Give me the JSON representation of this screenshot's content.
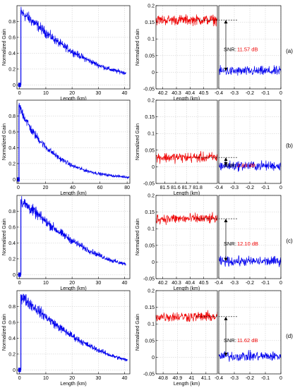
{
  "chart_data": [
    {
      "type": "line",
      "row_label": "(a)",
      "overview": {
        "xlabel": "Length (km)",
        "ylabel": "Normalized Gain",
        "xlim": [
          -1,
          42
        ],
        "ylim": [
          -0.05,
          1.0
        ],
        "xticks": [
          "0",
          "10",
          "20",
          "30",
          "40"
        ],
        "yticks": [
          "0",
          "0.2",
          "0.4",
          "0.6",
          "0.8"
        ],
        "series": [
          {
            "name": "",
            "color": "#0000ee",
            "x": [
              0,
              0.5,
              5,
              10,
              15,
              20,
              25,
              30,
              35,
              40.5
            ],
            "y": [
              0.0,
              0.92,
              0.8,
              0.66,
              0.53,
              0.42,
              0.33,
              0.25,
              0.19,
              0.15
            ]
          }
        ]
      },
      "zoom_fiber": {
        "xlabel": "Length (km)",
        "ylabel": "Normalized Gain",
        "xlim": [
          40.15,
          40.6
        ],
        "ylim": [
          -0.05,
          0.2
        ],
        "xticks": [
          "40.2",
          "40.3",
          "40.4",
          "40.5"
        ],
        "yticks": [
          "-0.05",
          "0",
          "0.05",
          "0.1",
          "0.15",
          "0.2"
        ],
        "series": [
          {
            "name": "",
            "color": "#ee0000",
            "x": [
              40.15,
              40.6
            ],
            "y": [
              0.157,
              0.157
            ]
          }
        ]
      },
      "zoom_noise": {
        "xlim": [
          -0.4,
          0.0
        ],
        "xticks": [
          "-0.4",
          "-0.3",
          "-0.2",
          "-0.1",
          "0"
        ],
        "series": [
          {
            "name": "",
            "color": "#0000ee",
            "x": [
              -0.4,
              0.0
            ],
            "y": [
              0.003,
              0.003
            ]
          }
        ]
      },
      "snr_label": "SNR:",
      "snr_value": "11.57 dB"
    },
    {
      "type": "line",
      "row_label": "(b)",
      "overview": {
        "xlabel": "Length (km)",
        "ylabel": "Normalized Gain",
        "xlim": [
          -1,
          82
        ],
        "ylim": [
          -0.05,
          1.0
        ],
        "xticks": [
          "0",
          "20",
          "40",
          "60",
          "80"
        ],
        "yticks": [
          "0",
          "0.2",
          "0.4",
          "0.6",
          "0.8"
        ],
        "series": [
          {
            "name": "",
            "color": "#0000ee",
            "x": [
              0,
              0.5,
              10,
              20,
              30,
              40,
              50,
              60,
              70,
              81.5
            ],
            "y": [
              0.0,
              0.92,
              0.61,
              0.41,
              0.27,
              0.17,
              0.11,
              0.07,
              0.045,
              0.028
            ]
          }
        ]
      },
      "zoom_fiber": {
        "xlabel": "Length (km)",
        "ylabel": "Normalized Gain",
        "xlim": [
          81.42,
          81.98
        ],
        "ylim": [
          -0.05,
          0.2
        ],
        "xticks": [
          "81.5",
          "81.6",
          "81.7",
          "81.8"
        ],
        "yticks": [
          "-0.05",
          "0",
          "0.05",
          "0.1",
          "0.15",
          "0.2"
        ],
        "series": [
          {
            "name": "",
            "color": "#ee0000",
            "x": [
              81.42,
              81.98
            ],
            "y": [
              0.028,
              0.028
            ]
          }
        ]
      },
      "zoom_noise": {
        "xlim": [
          -0.4,
          0.0
        ],
        "xticks": [
          "-0.4",
          "-0.3",
          "-0.2",
          "-0.1",
          "0"
        ],
        "series": [
          {
            "name": "",
            "color": "#0000ee",
            "x": [
              -0.4,
              0.0
            ],
            "y": [
              0.003,
              0.003
            ]
          }
        ]
      },
      "snr_label": "SNR:",
      "snr_value": "2.83 dB"
    },
    {
      "type": "line",
      "row_label": "(c)",
      "overview": {
        "xlabel": "Length (km)",
        "ylabel": "Normalized Gain",
        "xlim": [
          -1,
          42
        ],
        "ylim": [
          -0.05,
          1.0
        ],
        "xticks": [
          "0",
          "10",
          "20",
          "30",
          "40"
        ],
        "yticks": [
          "0",
          "0.2",
          "0.4",
          "0.6",
          "0.8"
        ],
        "series": [
          {
            "name": "",
            "color": "#0000ee",
            "x": [
              0,
              0.5,
              5,
              10,
              15,
              20,
              25,
              30,
              35,
              40.5
            ],
            "y": [
              0.0,
              0.93,
              0.81,
              0.67,
              0.54,
              0.43,
              0.33,
              0.25,
              0.18,
              0.13
            ]
          }
        ]
      },
      "zoom_fiber": {
        "xlabel": "Length (km)",
        "ylabel": "Normalized Gain",
        "xlim": [
          40.15,
          40.6
        ],
        "ylim": [
          -0.05,
          0.2
        ],
        "xticks": [
          "40.2",
          "40.3",
          "40.4",
          "40.5"
        ],
        "yticks": [
          "-0.05",
          "0",
          "0.05",
          "0.1",
          "0.15",
          "0.2"
        ],
        "series": [
          {
            "name": "",
            "color": "#ee0000",
            "x": [
              40.15,
              40.6
            ],
            "y": [
              0.13,
              0.13
            ]
          }
        ]
      },
      "zoom_noise": {
        "xlim": [
          -0.4,
          0.0
        ],
        "xticks": [
          "-0.4",
          "-0.3",
          "-0.2",
          "-0.1",
          "0"
        ],
        "series": [
          {
            "name": "",
            "color": "#0000ee",
            "x": [
              -0.4,
              0.0
            ],
            "y": [
              0.002,
              0.002
            ]
          }
        ]
      },
      "snr_label": "SNR:",
      "snr_value": "12.10 dB"
    },
    {
      "type": "line",
      "row_label": "(d)",
      "overview": {
        "xlabel": "Length (km)",
        "ylabel": "Normalized Gain",
        "xlim": [
          -1,
          42
        ],
        "ylim": [
          -0.05,
          1.0
        ],
        "xticks": [
          "0",
          "10",
          "20",
          "30",
          "40"
        ],
        "yticks": [
          "0",
          "0.2",
          "0.4",
          "0.6",
          "0.8"
        ],
        "series": [
          {
            "name": "",
            "color": "#0000ee",
            "x": [
              0,
              0.5,
              5,
              10,
              15,
              20,
              25,
              30,
              35,
              41
            ],
            "y": [
              0.0,
              0.93,
              0.81,
              0.67,
              0.54,
              0.43,
              0.33,
              0.25,
              0.18,
              0.12
            ]
          }
        ]
      },
      "zoom_fiber": {
        "xlabel": "Length (km)",
        "ylabel": "Normalized Gain",
        "xlim": [
          40.75,
          41.18
        ],
        "ylim": [
          -0.05,
          0.2
        ],
        "xticks": [
          "40.8",
          "40.9",
          "41",
          "41.1"
        ],
        "yticks": [
          "-0.05",
          "0",
          "0.05",
          "0.1",
          "0.15",
          "0.2"
        ],
        "series": [
          {
            "name": "",
            "color": "#ee0000",
            "x": [
              40.75,
              41.18
            ],
            "y": [
              0.122,
              0.122
            ]
          }
        ]
      },
      "zoom_noise": {
        "xlim": [
          -0.4,
          0.0
        ],
        "xticks": [
          "-0.4",
          "-0.3",
          "-0.2",
          "-0.1",
          "0"
        ],
        "series": [
          {
            "name": "",
            "color": "#0000ee",
            "x": [
              -0.4,
              0.0
            ],
            "y": [
              0.003,
              0.003
            ]
          }
        ]
      },
      "snr_label": "SNR:",
      "snr_value": "11.62 dB"
    }
  ]
}
